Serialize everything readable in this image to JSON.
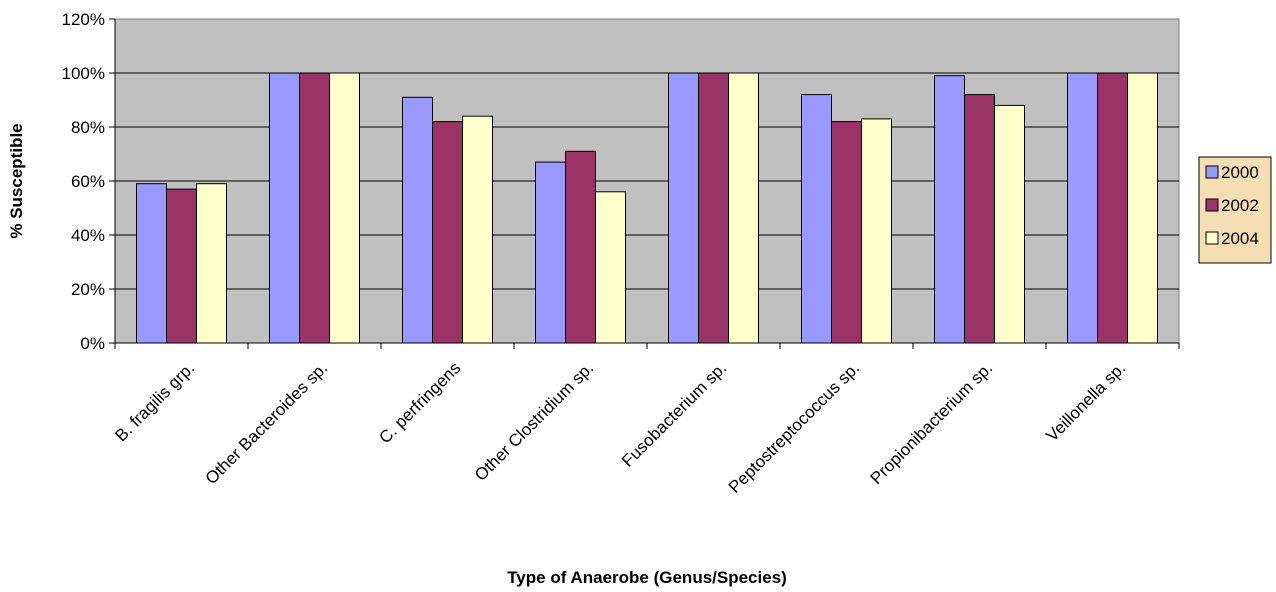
{
  "chart_data": {
    "type": "bar",
    "title": "",
    "xlabel": "Type of Anaerobe (Genus/Species)",
    "ylabel": "% Susceptible",
    "ylim": [
      0,
      120
    ],
    "yticks": [
      "0%",
      "20%",
      "40%",
      "60%",
      "80%",
      "100%",
      "120%"
    ],
    "categories": [
      "B. fragilis grp.",
      "Other Bacteroides sp.",
      "C. perfringens",
      "Other Clostridium sp.",
      "Fusobacterium sp.",
      "Peptostreptococcus sp.",
      "Propionibacterium sp.",
      "Veillonella sp."
    ],
    "series": [
      {
        "name": "2000",
        "color": "#9999ff",
        "values": [
          59,
          100,
          91,
          67,
          100,
          92,
          99,
          100
        ]
      },
      {
        "name": "2002",
        "color": "#993366",
        "values": [
          57,
          100,
          82,
          71,
          100,
          82,
          92,
          100
        ]
      },
      {
        "name": "2004",
        "color": "#ffffcc",
        "values": [
          59,
          100,
          84,
          56,
          100,
          83,
          88,
          100
        ]
      }
    ],
    "grid": true,
    "plot_background": "#c0c0c0",
    "legend_background": "#f5deb3",
    "legend_position": "right"
  }
}
